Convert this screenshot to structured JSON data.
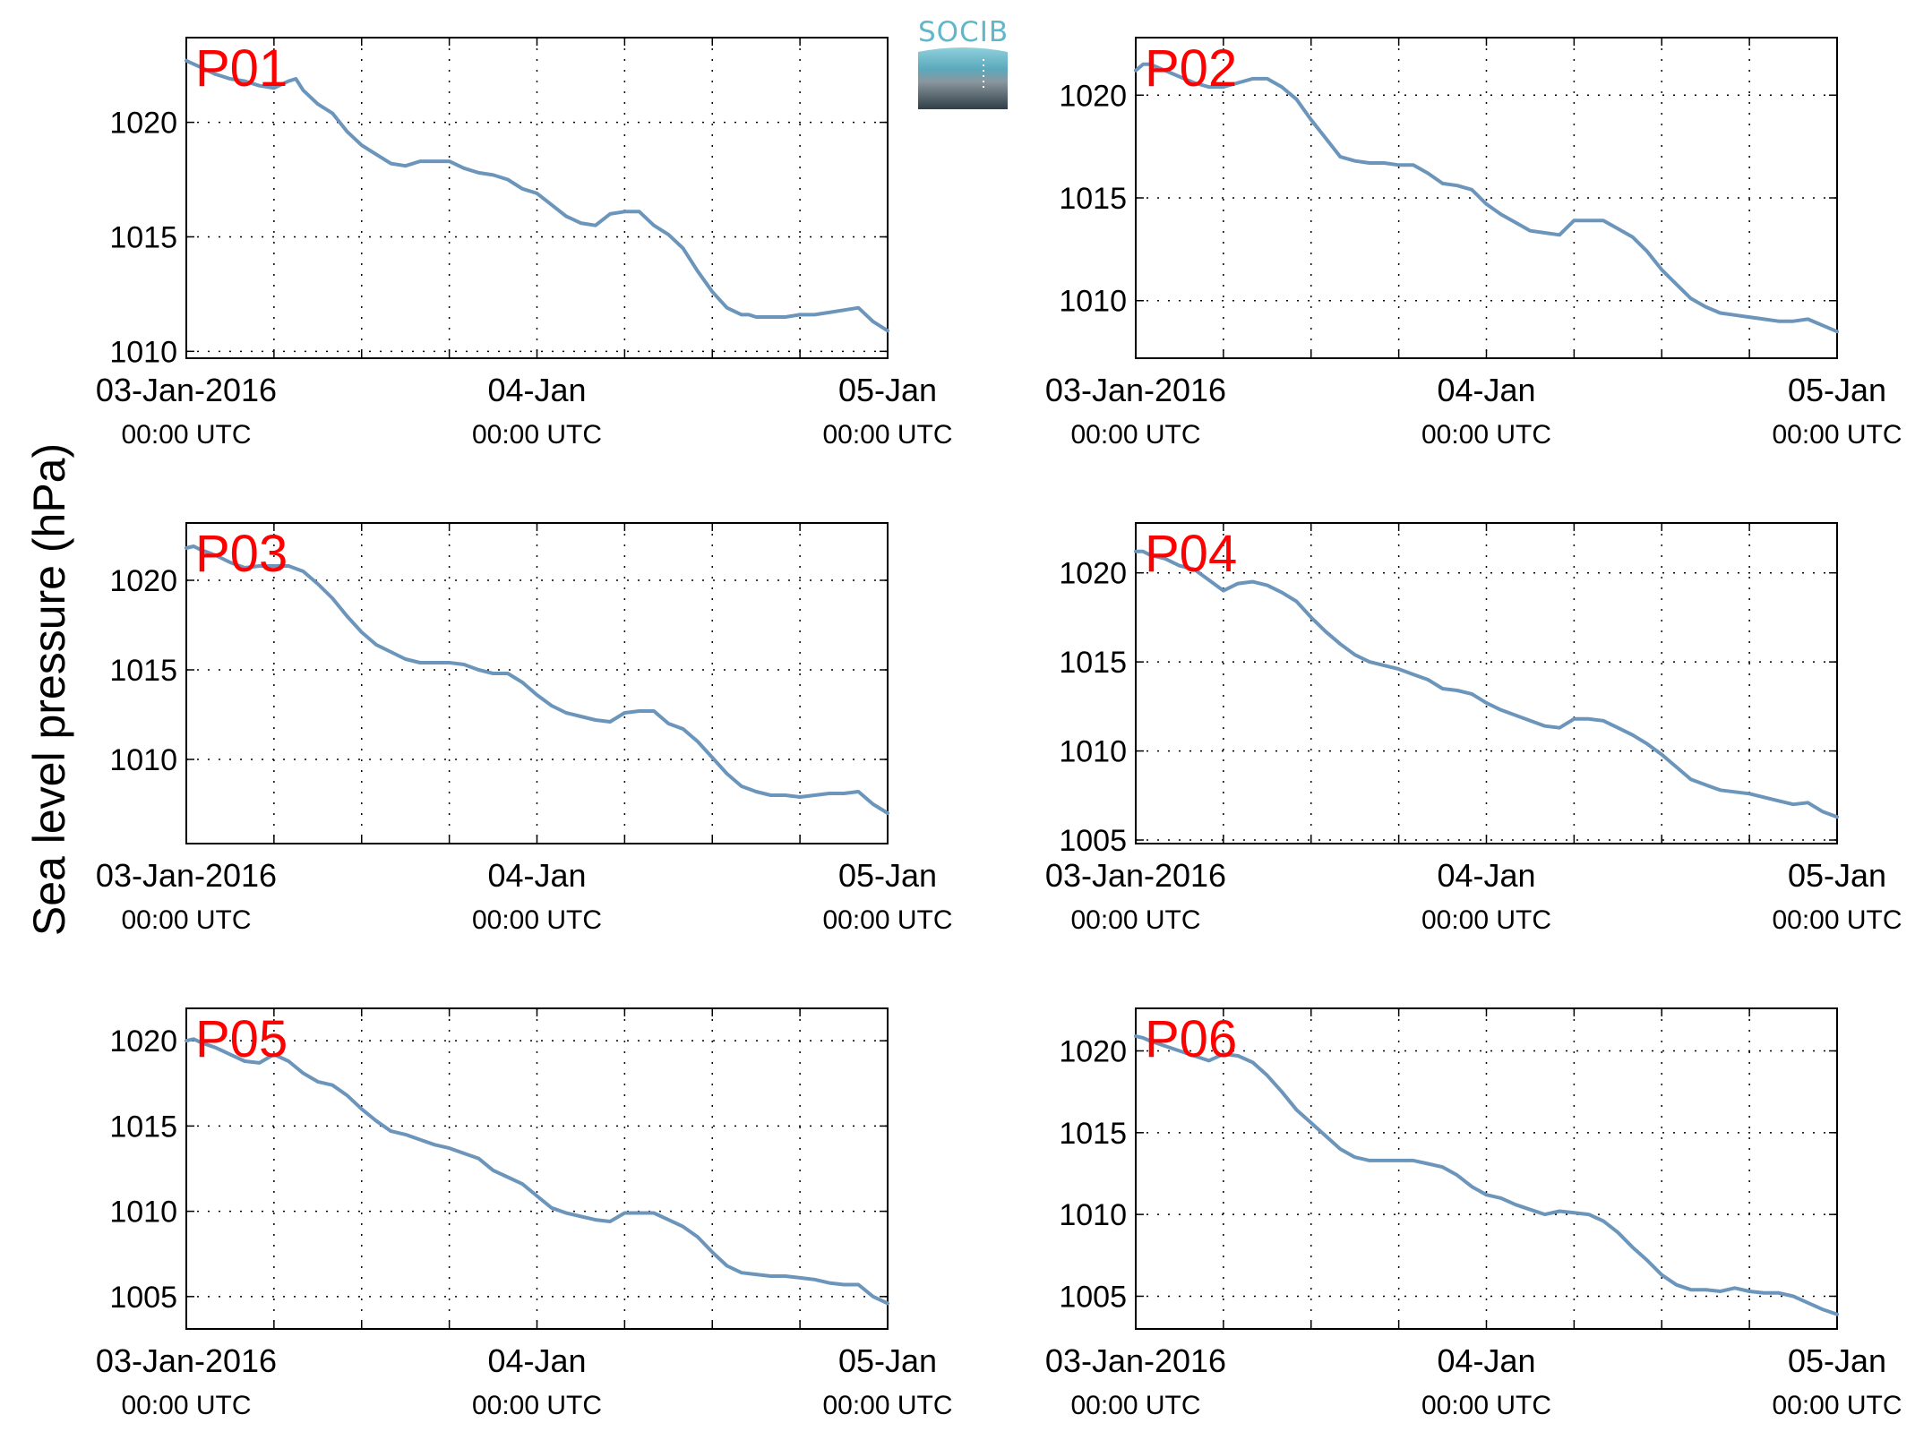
{
  "ylabel": "Sea level pressure (hPa)",
  "logo": {
    "text": "SOCIB",
    "color": "#5fb7c9"
  },
  "line_color": "#6b95ba",
  "label_color": "#ff0000",
  "chart_data": [
    {
      "type": "line",
      "title": "P01",
      "x_ticks": [
        "03-Jan-2016",
        "04-Jan",
        "05-Jan"
      ],
      "x_tick_sublabels": [
        "00:00 UTC",
        "00:00 UTC",
        "00:00 UTC"
      ],
      "xlim": [
        0,
        48
      ],
      "ylim": [
        1009.7,
        1023.7
      ],
      "y_ticks": [
        1010,
        1015,
        1020
      ],
      "grid": "dotted",
      "x": [
        0,
        0.3,
        1,
        2,
        3,
        4,
        5,
        6,
        7,
        7.5,
        8,
        9,
        10,
        11,
        12,
        13,
        14,
        15,
        16,
        17,
        18,
        19,
        20,
        21,
        22,
        23,
        24,
        25,
        26,
        27,
        28,
        29,
        30,
        31,
        32,
        33,
        34,
        35,
        36,
        37,
        38,
        38.5,
        39,
        40,
        41,
        42,
        43,
        44,
        45,
        46,
        47,
        48
      ],
      "y": [
        1022.7,
        1022.6,
        1022.4,
        1022.1,
        1021.9,
        1021.8,
        1021.6,
        1021.5,
        1021.8,
        1021.9,
        1021.4,
        1020.8,
        1020.4,
        1019.6,
        1019.0,
        1018.6,
        1018.2,
        1018.1,
        1018.3,
        1018.3,
        1018.3,
        1018.0,
        1017.8,
        1017.7,
        1017.5,
        1017.1,
        1016.9,
        1016.4,
        1015.9,
        1015.6,
        1015.5,
        1016.0,
        1016.1,
        1016.1,
        1015.5,
        1015.1,
        1014.5,
        1013.5,
        1012.6,
        1011.9,
        1011.6,
        1011.6,
        1011.5,
        1011.5,
        1011.5,
        1011.6,
        1011.6,
        1011.7,
        1011.8,
        1011.9,
        1011.3,
        1010.9
      ]
    },
    {
      "type": "line",
      "title": "P02",
      "x_ticks": [
        "03-Jan-2016",
        "04-Jan",
        "05-Jan"
      ],
      "x_tick_sublabels": [
        "00:00 UTC",
        "00:00 UTC",
        "00:00 UTC"
      ],
      "xlim": [
        0,
        48
      ],
      "ylim": [
        1007.2,
        1022.8
      ],
      "y_ticks": [
        1010,
        1015,
        1020
      ],
      "grid": "dotted",
      "x": [
        0,
        0.5,
        1,
        2,
        3,
        4,
        5,
        6,
        7,
        8,
        9,
        10,
        11,
        12,
        13,
        14,
        15,
        16,
        17,
        18,
        19,
        20,
        21,
        22,
        23,
        24,
        25,
        26,
        27,
        28,
        29,
        30,
        31,
        32,
        33,
        34,
        35,
        36,
        37,
        38,
        39,
        40,
        41,
        42,
        43,
        44,
        45,
        46,
        47,
        48
      ],
      "y": [
        1021.2,
        1021.5,
        1021.5,
        1021.2,
        1020.9,
        1020.6,
        1020.4,
        1020.4,
        1020.6,
        1020.8,
        1020.8,
        1020.4,
        1019.8,
        1018.8,
        1017.9,
        1017.0,
        1016.8,
        1016.7,
        1016.7,
        1016.6,
        1016.6,
        1016.2,
        1015.7,
        1015.6,
        1015.4,
        1014.7,
        1014.2,
        1013.8,
        1013.4,
        1013.3,
        1013.2,
        1013.9,
        1013.9,
        1013.9,
        1013.5,
        1013.1,
        1012.4,
        1011.5,
        1010.8,
        1010.1,
        1009.7,
        1009.4,
        1009.3,
        1009.2,
        1009.1,
        1009.0,
        1009.0,
        1009.1,
        1008.8,
        1008.5
      ]
    },
    {
      "type": "line",
      "title": "P03",
      "x_ticks": [
        "03-Jan-2016",
        "04-Jan",
        "05-Jan"
      ],
      "x_tick_sublabels": [
        "00:00 UTC",
        "00:00 UTC",
        "00:00 UTC"
      ],
      "xlim": [
        0,
        48
      ],
      "ylim": [
        1005.3,
        1023.2
      ],
      "y_ticks": [
        1010,
        1015,
        1020
      ],
      "grid": "dotted",
      "x": [
        0,
        0.5,
        1,
        2,
        3,
        4,
        5,
        6,
        7,
        8,
        9,
        10,
        11,
        12,
        13,
        14,
        15,
        16,
        17,
        18,
        19,
        20,
        21,
        22,
        23,
        24,
        25,
        26,
        27,
        28,
        29,
        30,
        31,
        32,
        33,
        34,
        35,
        36,
        37,
        38,
        39,
        40,
        41,
        42,
        43,
        44,
        45,
        46,
        47,
        48
      ],
      "y": [
        1021.8,
        1021.9,
        1021.7,
        1021.4,
        1021.0,
        1020.7,
        1020.8,
        1020.8,
        1020.8,
        1020.5,
        1019.8,
        1019.0,
        1018.0,
        1017.1,
        1016.4,
        1016.0,
        1015.6,
        1015.4,
        1015.4,
        1015.4,
        1015.3,
        1015.0,
        1014.8,
        1014.8,
        1014.3,
        1013.6,
        1013.0,
        1012.6,
        1012.4,
        1012.2,
        1012.1,
        1012.6,
        1012.7,
        1012.7,
        1012.0,
        1011.7,
        1011.0,
        1010.1,
        1009.2,
        1008.5,
        1008.2,
        1008.0,
        1008.0,
        1007.9,
        1008.0,
        1008.1,
        1008.1,
        1008.2,
        1007.5,
        1007.0
      ]
    },
    {
      "type": "line",
      "title": "P04",
      "x_ticks": [
        "03-Jan-2016",
        "04-Jan",
        "05-Jan"
      ],
      "x_tick_sublabels": [
        "00:00 UTC",
        "00:00 UTC",
        "00:00 UTC"
      ],
      "xlim": [
        0,
        48
      ],
      "ylim": [
        1004.8,
        1022.8
      ],
      "y_ticks": [
        1005,
        1010,
        1015,
        1020
      ],
      "grid": "dotted",
      "x": [
        0,
        0.5,
        1,
        2,
        3,
        4,
        5,
        6,
        7,
        8,
        9,
        10,
        11,
        12,
        13,
        14,
        15,
        16,
        17,
        18,
        19,
        20,
        21,
        22,
        23,
        24,
        25,
        26,
        27,
        28,
        29,
        30,
        31,
        32,
        33,
        34,
        35,
        36,
        37,
        38,
        39,
        40,
        41,
        42,
        43,
        44,
        45,
        46,
        47,
        48
      ],
      "y": [
        1021.2,
        1021.2,
        1021.0,
        1020.8,
        1020.4,
        1020.2,
        1019.6,
        1019.0,
        1019.4,
        1019.5,
        1019.3,
        1018.9,
        1018.4,
        1017.5,
        1016.7,
        1016.0,
        1015.4,
        1015.0,
        1014.8,
        1014.6,
        1014.3,
        1014.0,
        1013.5,
        1013.4,
        1013.2,
        1012.7,
        1012.3,
        1012.0,
        1011.7,
        1011.4,
        1011.3,
        1011.8,
        1011.8,
        1011.7,
        1011.3,
        1010.9,
        1010.4,
        1009.8,
        1009.1,
        1008.4,
        1008.1,
        1007.8,
        1007.7,
        1007.6,
        1007.4,
        1007.2,
        1007.0,
        1007.1,
        1006.6,
        1006.3
      ]
    },
    {
      "type": "line",
      "title": "P05",
      "x_ticks": [
        "03-Jan-2016",
        "04-Jan",
        "05-Jan"
      ],
      "x_tick_sublabels": [
        "00:00 UTC",
        "00:00 UTC",
        "00:00 UTC"
      ],
      "xlim": [
        0,
        48
      ],
      "ylim": [
        1003.1,
        1021.9
      ],
      "y_ticks": [
        1005,
        1010,
        1015,
        1020
      ],
      "grid": "dotted",
      "x": [
        0,
        0.5,
        1,
        2,
        3,
        4,
        5,
        6,
        7,
        8,
        9,
        10,
        11,
        12,
        13,
        14,
        15,
        16,
        17,
        18,
        19,
        20,
        21,
        22,
        23,
        24,
        25,
        26,
        27,
        28,
        29,
        30,
        31,
        32,
        33,
        34,
        35,
        36,
        37,
        38,
        39,
        40,
        41,
        42,
        43,
        44,
        45,
        46,
        47,
        48
      ],
      "y": [
        1020.0,
        1020.1,
        1019.9,
        1019.6,
        1019.2,
        1018.8,
        1018.7,
        1019.2,
        1018.8,
        1018.1,
        1017.6,
        1017.4,
        1016.8,
        1016.0,
        1015.3,
        1014.7,
        1014.5,
        1014.2,
        1013.9,
        1013.7,
        1013.4,
        1013.1,
        1012.4,
        1012.0,
        1011.6,
        1010.9,
        1010.2,
        1009.9,
        1009.7,
        1009.5,
        1009.4,
        1009.9,
        1009.9,
        1009.9,
        1009.5,
        1009.1,
        1008.5,
        1007.6,
        1006.8,
        1006.4,
        1006.3,
        1006.2,
        1006.2,
        1006.1,
        1006.0,
        1005.8,
        1005.7,
        1005.7,
        1005.0,
        1004.6
      ]
    },
    {
      "type": "line",
      "title": "P06",
      "x_ticks": [
        "03-Jan-2016",
        "04-Jan",
        "05-Jan"
      ],
      "x_tick_sublabels": [
        "00:00 UTC",
        "00:00 UTC",
        "00:00 UTC"
      ],
      "xlim": [
        0,
        48
      ],
      "ylim": [
        1003.0,
        1022.6
      ],
      "y_ticks": [
        1005,
        1010,
        1015,
        1020
      ],
      "grid": "dotted",
      "x": [
        0,
        0.5,
        1,
        2,
        3,
        4,
        5,
        6,
        7,
        8,
        9,
        10,
        11,
        12,
        13,
        14,
        15,
        16,
        17,
        18,
        19,
        20,
        21,
        22,
        23,
        24,
        25,
        26,
        27,
        28,
        29,
        30,
        31,
        32,
        33,
        34,
        35,
        36,
        37,
        38,
        39,
        40,
        41,
        42,
        43,
        44,
        45,
        46,
        47,
        48
      ],
      "y": [
        1020.9,
        1020.8,
        1020.6,
        1020.3,
        1020.0,
        1019.7,
        1019.4,
        1019.8,
        1019.7,
        1019.3,
        1018.5,
        1017.5,
        1016.4,
        1015.6,
        1014.8,
        1014.0,
        1013.5,
        1013.3,
        1013.3,
        1013.3,
        1013.3,
        1013.1,
        1012.9,
        1012.4,
        1011.7,
        1011.2,
        1011.0,
        1010.6,
        1010.3,
        1010.0,
        1010.2,
        1010.1,
        1010.0,
        1009.6,
        1008.9,
        1008.0,
        1007.2,
        1006.3,
        1005.7,
        1005.4,
        1005.4,
        1005.3,
        1005.5,
        1005.3,
        1005.2,
        1005.2,
        1005.0,
        1004.6,
        1004.2,
        1003.9
      ]
    }
  ]
}
